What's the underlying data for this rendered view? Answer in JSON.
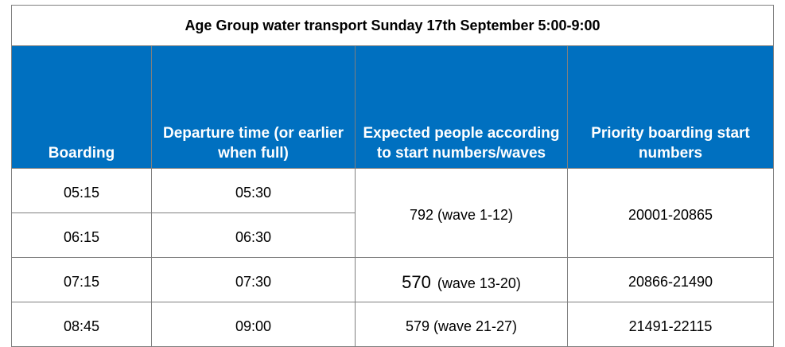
{
  "table": {
    "title": "Age Group water transport Sunday 17th September 5:00-9:00",
    "header": [
      "Boarding",
      "Departure time (or earlier when full)",
      "Expected people according to start numbers/waves",
      "Priority boarding start numbers"
    ],
    "rows": [
      [
        "05:15",
        "05:30",
        "792 (wave 1-12)",
        "20001-20865"
      ],
      [
        "06:15",
        "06:30"
      ],
      [
        "07:15",
        "07:30",
        [
          "570",
          "(wave 13-20)"
        ],
        "20866-21490"
      ],
      [
        "08:45",
        "09:00",
        "579 (wave 21-27)",
        "21491-22115"
      ]
    ]
  }
}
